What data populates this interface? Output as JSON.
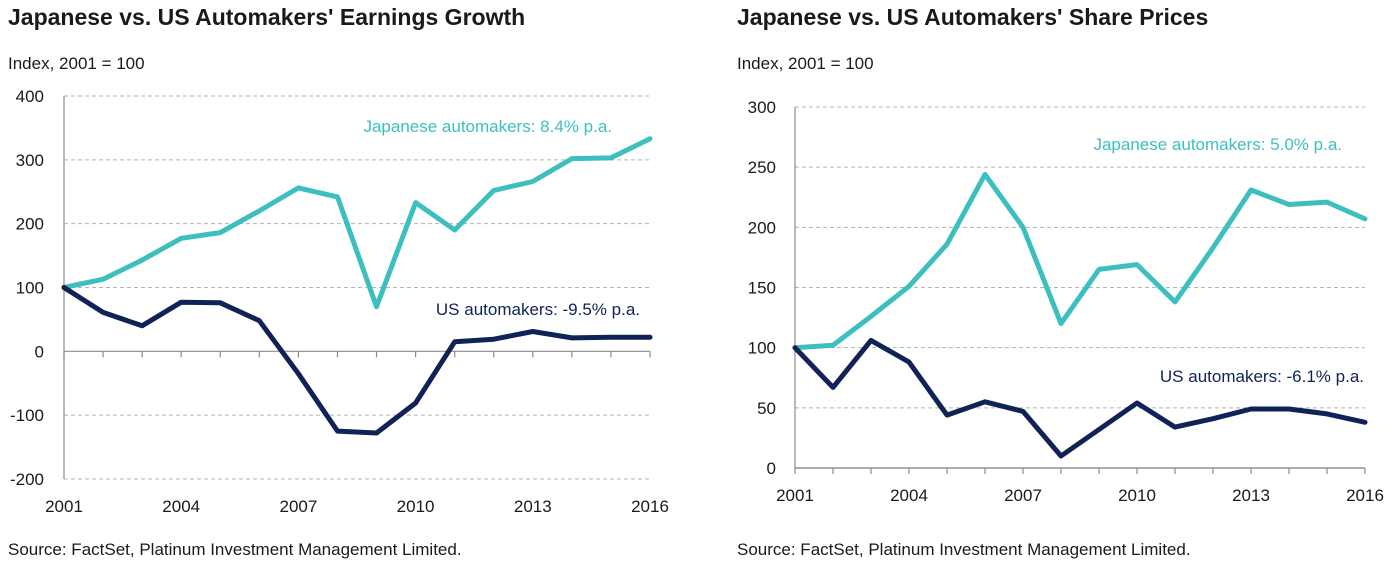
{
  "chart_data": [
    {
      "type": "line",
      "title": "Japanese vs. US Automakers' Earnings Growth",
      "subtitle": "Index, 2001 = 100",
      "source": "Source: FactSet, Platinum Investment Management Limited.",
      "x": [
        2001,
        2002,
        2003,
        2004,
        2005,
        2006,
        2007,
        2008,
        2009,
        2010,
        2011,
        2012,
        2013,
        2014,
        2015,
        2016
      ],
      "xticks": [
        2001,
        2004,
        2007,
        2010,
        2013,
        2016
      ],
      "ylim": [
        -200,
        400
      ],
      "yticks": [
        -200,
        -100,
        0,
        100,
        200,
        300,
        400
      ],
      "ytick_labels": [
        "-200",
        "-100",
        "0",
        "100",
        "200",
        "300",
        "400"
      ],
      "grid": true,
      "series": [
        {
          "name": "Japanese automakers",
          "label": "Japanese automakers: 8.4% p.a.",
          "color": "#3dbfbf",
          "values": [
            100,
            113,
            143,
            177,
            186,
            220,
            256,
            242,
            70,
            233,
            190,
            252,
            266,
            302,
            303,
            333
          ]
        },
        {
          "name": "US automakers",
          "label": "US automakers: -9.5% p.a.",
          "color": "#0f2356",
          "values": [
            100,
            61,
            40,
            77,
            76,
            48,
            -35,
            -125,
            -128,
            -81,
            15,
            19,
            31,
            21,
            22,
            22
          ]
        }
      ]
    },
    {
      "type": "line",
      "title": "Japanese vs. US Automakers' Share Prices",
      "subtitle": "Index, 2001 = 100",
      "source": "Source: FactSet, Platinum Investment Management Limited.",
      "x": [
        2001,
        2002,
        2003,
        2004,
        2005,
        2006,
        2007,
        2008,
        2009,
        2010,
        2011,
        2012,
        2013,
        2014,
        2015,
        2016
      ],
      "xticks": [
        2001,
        2004,
        2007,
        2010,
        2013,
        2016
      ],
      "ylim": [
        0,
        300
      ],
      "yticks": [
        0,
        50,
        100,
        150,
        200,
        250,
        300
      ],
      "ytick_labels": [
        "0",
        "50",
        "100",
        "150",
        "200",
        "250",
        "300"
      ],
      "grid": true,
      "series": [
        {
          "name": "Japanese automakers",
          "label": "Japanese automakers: 5.0% p.a.",
          "color": "#3dbfbf",
          "values": [
            100,
            102,
            126,
            151,
            186,
            244,
            200,
            120,
            165,
            169,
            138,
            183,
            231,
            219,
            221,
            207
          ]
        },
        {
          "name": "US automakers",
          "label": "US automakers: -6.1% p.a.",
          "color": "#0f2356",
          "values": [
            100,
            67,
            106,
            88,
            44,
            55,
            47,
            10,
            32,
            54,
            34,
            41,
            49,
            49,
            45,
            38
          ]
        }
      ]
    }
  ]
}
